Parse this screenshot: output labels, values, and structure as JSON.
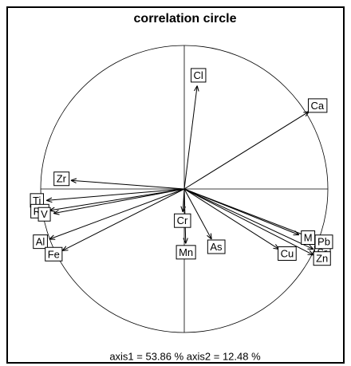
{
  "chart_data": {
    "type": "correlation_circle",
    "title": "correlation circle",
    "subtitle": "axis1 = 53.86 % axis2 = 12.48 %",
    "labels": [
      "Cl",
      "Ca",
      "Zr",
      "Ti",
      "Rb",
      "V",
      "Al",
      "Fe",
      "Cr",
      "Mn",
      "As",
      "Cu",
      "M",
      "Sr",
      "Pb",
      "Zn"
    ],
    "x": [
      0.09,
      0.87,
      -0.79,
      -0.96,
      -0.94,
      -0.91,
      -0.94,
      -0.85,
      -0.01,
      0.01,
      0.19,
      0.66,
      0.8,
      0.9,
      0.91,
      0.9
    ],
    "y": [
      0.72,
      0.54,
      0.06,
      -0.08,
      -0.15,
      -0.17,
      -0.35,
      -0.43,
      -0.16,
      -0.38,
      -0.35,
      -0.42,
      -0.32,
      -0.42,
      -0.35,
      -0.46
    ],
    "xlim": [
      -1,
      1
    ],
    "ylim": [
      -1,
      1
    ]
  }
}
